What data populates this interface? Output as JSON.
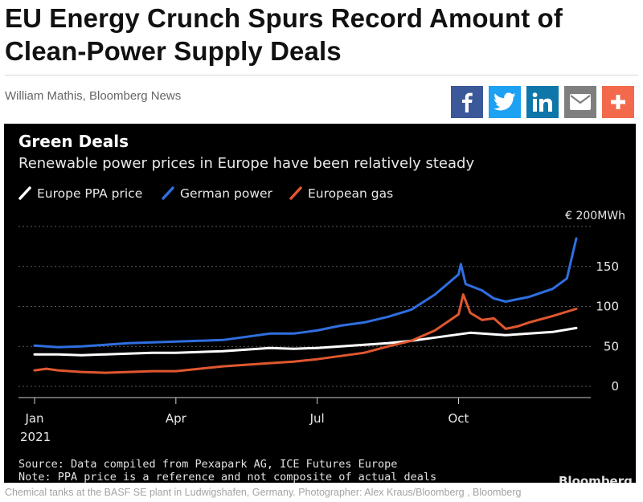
{
  "article": {
    "headline": "EU Energy Crunch Spurs Record Amount of Clean-Power Supply Deals",
    "byline": "William Mathis, Bloomberg News",
    "caption": "Chemical tanks at the BASF SE plant in Ludwigshafen, Germany. Photographer: Alex Kraus/Bloomberg , Bloomberg"
  },
  "share": [
    {
      "name": "facebook",
      "icon": "facebook-icon",
      "color": "#3b5998"
    },
    {
      "name": "twitter",
      "icon": "twitter-icon",
      "color": "#1da1f2"
    },
    {
      "name": "linkedin",
      "icon": "linkedin-icon",
      "color": "#0e76a8"
    },
    {
      "name": "email",
      "icon": "mail-icon",
      "color": "#7f7f7f"
    },
    {
      "name": "more",
      "icon": "plus-icon",
      "color": "#f26a4b"
    }
  ],
  "chart_data": {
    "type": "line",
    "title": "Green Deals",
    "subtitle": "Renewable power prices in Europe have been relatively steady",
    "unit_label": "€ 200MWh",
    "ylim": [
      0,
      200
    ],
    "yticks": [
      "0",
      "50",
      "100",
      "150"
    ],
    "xticks": [
      {
        "label": "Jan",
        "sub": "2021",
        "t": 0
      },
      {
        "label": "Apr",
        "sub": "",
        "t": 3
      },
      {
        "label": "Jul",
        "sub": "",
        "t": 6
      },
      {
        "label": "Oct",
        "sub": "",
        "t": 9
      }
    ],
    "xlim": [
      0,
      11.5
    ],
    "grid": true,
    "source": "Source: Data compiled from Pexapark AG, ICE Futures Europe",
    "note": "Note: PPA price is a reference and not composite of actual deals",
    "brand": "Bloomberg",
    "series": [
      {
        "name": "Europe PPA price",
        "color": "#ffffff",
        "points": [
          [
            0,
            40
          ],
          [
            0.5,
            40
          ],
          [
            1,
            39
          ],
          [
            1.5,
            40
          ],
          [
            2,
            41
          ],
          [
            2.5,
            42
          ],
          [
            3,
            42
          ],
          [
            3.5,
            43
          ],
          [
            4,
            44
          ],
          [
            4.5,
            46
          ],
          [
            5,
            48
          ],
          [
            5.5,
            47
          ],
          [
            6,
            48
          ],
          [
            6.5,
            50
          ],
          [
            7,
            52
          ],
          [
            7.5,
            54
          ],
          [
            8,
            57
          ],
          [
            8.5,
            61
          ],
          [
            9,
            65
          ],
          [
            9.25,
            67
          ],
          [
            9.5,
            66
          ],
          [
            10,
            64
          ],
          [
            10.5,
            66
          ],
          [
            11,
            68
          ],
          [
            11.5,
            73
          ]
        ]
      },
      {
        "name": "German power",
        "color": "#2f6fe0",
        "points": [
          [
            0,
            51
          ],
          [
            0.5,
            49
          ],
          [
            1,
            50
          ],
          [
            1.5,
            52
          ],
          [
            2,
            54
          ],
          [
            2.5,
            55
          ],
          [
            3,
            56
          ],
          [
            3.5,
            57
          ],
          [
            4,
            58
          ],
          [
            4.5,
            62
          ],
          [
            5,
            66
          ],
          [
            5.5,
            66
          ],
          [
            6,
            70
          ],
          [
            6.5,
            76
          ],
          [
            7,
            80
          ],
          [
            7.5,
            87
          ],
          [
            8,
            96
          ],
          [
            8.5,
            115
          ],
          [
            9,
            140
          ],
          [
            9.05,
            153
          ],
          [
            9.15,
            128
          ],
          [
            9.5,
            120
          ],
          [
            9.75,
            110
          ],
          [
            10,
            106
          ],
          [
            10.5,
            112
          ],
          [
            11,
            122
          ],
          [
            11.3,
            135
          ],
          [
            11.5,
            185
          ]
        ]
      },
      {
        "name": "European gas",
        "color": "#e0572f",
        "points": [
          [
            0,
            20
          ],
          [
            0.25,
            22
          ],
          [
            0.5,
            20
          ],
          [
            1,
            18
          ],
          [
            1.5,
            17
          ],
          [
            2,
            18
          ],
          [
            2.5,
            19
          ],
          [
            3,
            19
          ],
          [
            3.5,
            22
          ],
          [
            4,
            25
          ],
          [
            4.5,
            27
          ],
          [
            5,
            29
          ],
          [
            5.5,
            31
          ],
          [
            6,
            34
          ],
          [
            6.5,
            38
          ],
          [
            7,
            42
          ],
          [
            7.5,
            50
          ],
          [
            8,
            57
          ],
          [
            8.5,
            70
          ],
          [
            9,
            90
          ],
          [
            9.1,
            115
          ],
          [
            9.25,
            92
          ],
          [
            9.5,
            83
          ],
          [
            9.75,
            85
          ],
          [
            10,
            72
          ],
          [
            10.25,
            75
          ],
          [
            10.5,
            80
          ],
          [
            11,
            88
          ],
          [
            11.5,
            97
          ]
        ]
      }
    ]
  }
}
